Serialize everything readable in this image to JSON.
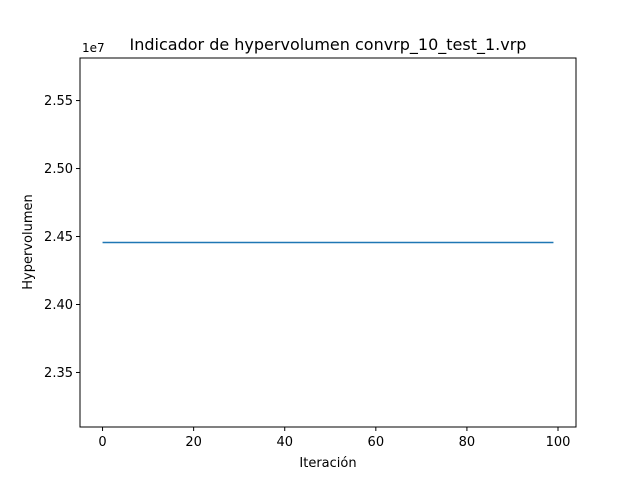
{
  "chart_data": {
    "type": "line",
    "title": "Indicador de hypervolumen convrp_10_test_1.vrp",
    "xlabel": "Iteración",
    "ylabel": "Hypervolumen",
    "y_offset_label": "1e7",
    "xlim": [
      -4.95,
      103.95
    ],
    "ylim": [
      2.3099,
      2.5813
    ],
    "x_ticks": [
      0,
      20,
      40,
      60,
      80,
      100
    ],
    "x_tick_labels": [
      "0",
      "20",
      "40",
      "60",
      "80",
      "100"
    ],
    "y_ticks": [
      2.35,
      2.4,
      2.45,
      2.5,
      2.55
    ],
    "y_tick_labels": [
      "2.35",
      "2.40",
      "2.45",
      "2.50",
      "2.55"
    ],
    "grid": false,
    "series": [
      {
        "color": "#1f77b4",
        "x_start": 0,
        "x_end": 99,
        "y_constant": 2.4456
      }
    ]
  }
}
